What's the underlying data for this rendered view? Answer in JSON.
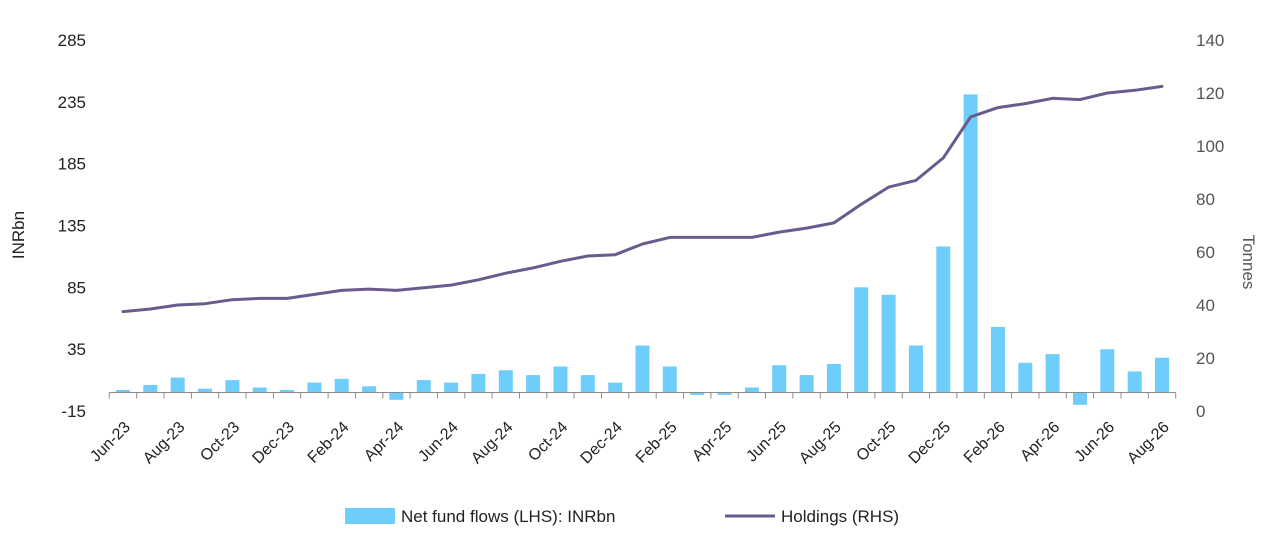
{
  "chart_data": {
    "type": "bar+line",
    "title": "",
    "xlabel": "",
    "ylabel_left": "INRbn",
    "ylabel_right": "Tonnes",
    "ylim_left": [
      -15,
      285
    ],
    "ylim_right": [
      0,
      140
    ],
    "yticks_left": [
      -15,
      35,
      85,
      135,
      185,
      235,
      285
    ],
    "yticks_right": [
      0,
      20,
      40,
      60,
      80,
      100,
      120,
      140
    ],
    "grid": false,
    "legend_position": "bottom",
    "categories": [
      "Jun-23",
      "Jul-23",
      "Aug-23",
      "Sep-23",
      "Oct-23",
      "Nov-23",
      "Dec-23",
      "Jan-24",
      "Feb-24",
      "Mar-24",
      "Apr-24",
      "May-24",
      "Jun-24",
      "Jul-24",
      "Aug-24",
      "Sep-24",
      "Oct-24",
      "Nov-24",
      "Dec-24",
      "Jan-25",
      "Feb-25",
      "Mar-25",
      "Apr-25",
      "May-25",
      "Jun-25",
      "Jul-25",
      "Aug-25",
      "Sep-25",
      "Oct-25",
      "Nov-25",
      "Dec-25",
      "Jan-26",
      "Feb-26",
      "Mar-26",
      "Apr-26",
      "May-26",
      "Jun-26",
      "Jul-26",
      "Aug-26"
    ],
    "x_tick_labels": [
      "Jun-23",
      "Aug-23",
      "Oct-23",
      "Dec-23",
      "Feb-24",
      "Apr-24",
      "Jun-24",
      "Aug-24",
      "Oct-24",
      "Dec-24",
      "Feb-25",
      "Apr-25",
      "Jun-25",
      "Aug-25",
      "Oct-25",
      "Dec-25",
      "Feb-26",
      "Apr-26",
      "Jun-26",
      "Aug-26"
    ],
    "series": [
      {
        "name": "Net fund flows (LHS): INRbn",
        "type": "bar",
        "axis": "left",
        "color": "#6fcdfb",
        "values": [
          2,
          6,
          12,
          3,
          10,
          4,
          2,
          8,
          11,
          5,
          -6,
          10,
          8,
          15,
          18,
          14,
          21,
          14,
          8,
          38,
          21,
          -2,
          -2,
          4,
          22,
          14,
          23,
          85,
          79,
          38,
          118,
          241,
          53,
          24,
          31,
          -10,
          35,
          17,
          28
        ]
      },
      {
        "name": "Holdings (RHS)",
        "type": "line",
        "axis": "right",
        "color": "#6a5b8e",
        "values": [
          37.5,
          38.5,
          40,
          40.5,
          42,
          42.5,
          42.5,
          44,
          45.5,
          46,
          45.5,
          46.5,
          47.5,
          49.5,
          52,
          54,
          56.5,
          58.5,
          59,
          63,
          65.5,
          65.5,
          65.5,
          65.5,
          67.5,
          69,
          71,
          78,
          84.5,
          87,
          95.5,
          111,
          114.5,
          116,
          118,
          117.5,
          120,
          121,
          122.5
        ]
      }
    ]
  }
}
